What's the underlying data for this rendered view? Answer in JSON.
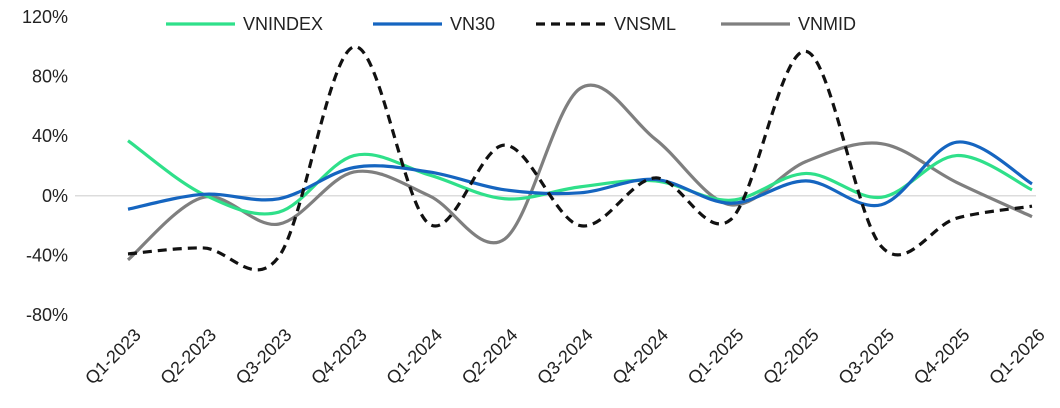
{
  "chart_data": {
    "type": "line",
    "title": "",
    "xlabel": "",
    "ylabel": "",
    "categories": [
      "Q1-2023",
      "Q2-2023",
      "Q3-2023",
      "Q4-2023",
      "Q1-2024",
      "Q2-2024",
      "Q3-2024",
      "Q4-2024",
      "Q1-2025",
      "Q2-2025",
      "Q3-2025",
      "Q4-2025",
      "Q1-2026"
    ],
    "yticks": [
      "-80%",
      "-40%",
      "0%",
      "40%",
      "80%",
      "120%"
    ],
    "ylim": [
      -80,
      120
    ],
    "y_unit": "%",
    "grid": false,
    "zero_line": true,
    "legend_position": "top",
    "series": [
      {
        "name": "VNINDEX",
        "color": "#2fe08a",
        "dash": "solid",
        "values": [
          37,
          1,
          -11,
          27,
          14,
          -2,
          6,
          10,
          -3,
          15,
          -1,
          27,
          4
        ]
      },
      {
        "name": "VN30",
        "color": "#1565c0",
        "dash": "solid",
        "values": [
          -9,
          1,
          -2,
          19,
          16,
          4,
          2,
          11,
          -5,
          10,
          -6,
          36,
          8
        ]
      },
      {
        "name": "VNSML",
        "color": "#111111",
        "dash": "dashed",
        "values": [
          -39,
          -35,
          -41,
          100,
          -19,
          34,
          -20,
          12,
          -16,
          97,
          -34,
          -15,
          -7
        ]
      },
      {
        "name": "VNMID",
        "color": "#7f7f7f",
        "dash": "solid",
        "values": [
          -43,
          -1,
          -19,
          16,
          0,
          -29,
          72,
          38,
          -6,
          23,
          35,
          9,
          -14
        ]
      }
    ]
  }
}
